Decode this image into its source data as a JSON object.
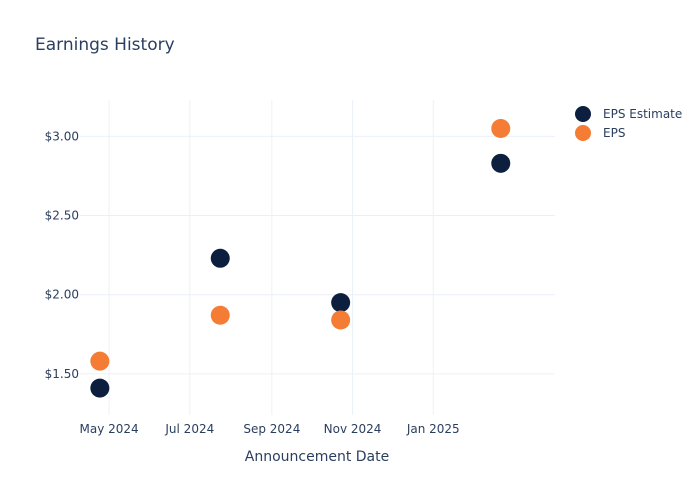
{
  "chart_data": {
    "type": "scatter",
    "title": "Earnings History",
    "xlabel": "Announcement Date",
    "ylabel": "",
    "x_ticks": [
      "2024-05-01",
      "2024-07-01",
      "2024-09-01",
      "2024-11-01",
      "2025-01-01"
    ],
    "x_tick_labels": [
      "May 2024",
      "Jul 2024",
      "Sep 2024",
      "Nov 2024",
      "Jan 2025"
    ],
    "xlim": [
      "2024-04-09",
      "2025-04-03"
    ],
    "y_ticks": [
      1.5,
      2.0,
      2.5,
      3.0
    ],
    "y_tick_labels": [
      "$1.50",
      "$2.00",
      "$2.50",
      "$3.00"
    ],
    "ylim": [
      1.24,
      3.23
    ],
    "grid": true,
    "legend_position": "top-right",
    "series": [
      {
        "name": "EPS Estimate",
        "color": "#0d1f3f",
        "x": [
          "2024-04-24",
          "2024-07-24",
          "2024-10-23",
          "2025-02-21"
        ],
        "y": [
          1.41,
          2.23,
          1.95,
          2.83
        ]
      },
      {
        "name": "EPS",
        "color": "#f47c34",
        "x": [
          "2024-04-24",
          "2024-07-24",
          "2024-10-23",
          "2025-02-21"
        ],
        "y": [
          1.58,
          1.87,
          1.84,
          3.05
        ]
      }
    ]
  }
}
